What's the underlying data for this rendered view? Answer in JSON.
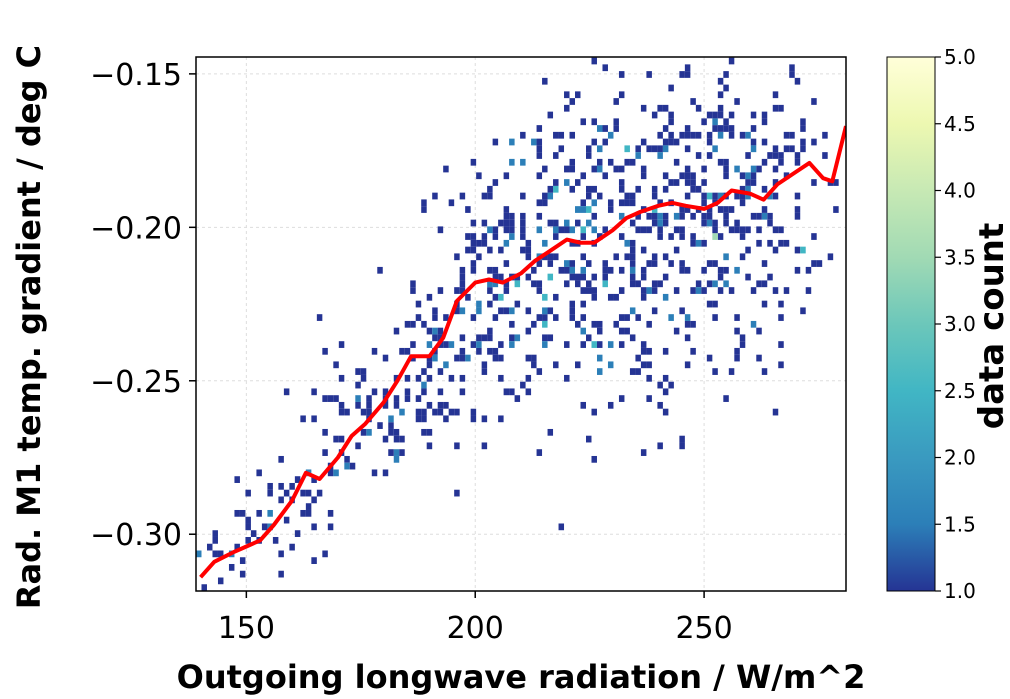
{
  "chart_data": {
    "type": "heatmap",
    "xlabel": "Outgoing longwave radiation / W/m^2",
    "ylabel": "Rad. M1 temp. gradient / deg C",
    "xlim": [
      139,
      281
    ],
    "ylim": [
      -0.3185,
      -0.1445
    ],
    "x_ticks": [
      150,
      200,
      250
    ],
    "x_tick_labels": [
      "150",
      "200",
      "250"
    ],
    "y_ticks": [
      -0.3,
      -0.25,
      -0.2,
      -0.15
    ],
    "y_tick_labels": [
      "−0.30",
      "−0.25",
      "−0.20",
      "−0.15"
    ],
    "grid": true,
    "colormap": "YlGnBu",
    "colorbar": {
      "label": "data count",
      "range": [
        1.0,
        5.0
      ],
      "ticks": [
        1.0,
        1.5,
        2.0,
        2.5,
        3.0,
        3.5,
        4.0,
        4.5,
        5.0
      ],
      "tick_labels": [
        "1.0",
        "1.5",
        "2.0",
        "2.5",
        "3.0",
        "3.5",
        "4.0",
        "4.5",
        "5.0"
      ]
    },
    "bin_size": {
      "x": 1.2,
      "y": 0.0022
    },
    "cell_colors": {
      "1": "#253494",
      "2": "#2c7fb8",
      "3": "#41b6c4",
      "4": "#a1dab4",
      "5": "#ffffcc"
    },
    "mean_line": {
      "color": "#ff0000",
      "x": [
        140,
        143,
        147,
        150,
        153,
        156,
        160,
        163,
        166,
        170,
        173,
        176,
        180,
        183,
        186,
        190,
        193,
        196,
        200,
        203,
        206,
        210,
        213,
        216,
        220,
        223,
        226,
        230,
        233,
        236,
        240,
        243,
        246,
        250,
        253,
        256,
        260,
        263,
        266,
        270,
        273,
        276,
        278,
        281
      ],
      "y": [
        -0.314,
        -0.309,
        -0.306,
        -0.304,
        -0.302,
        -0.297,
        -0.289,
        -0.28,
        -0.282,
        -0.275,
        -0.268,
        -0.264,
        -0.257,
        -0.25,
        -0.242,
        -0.242,
        -0.236,
        -0.224,
        -0.218,
        -0.217,
        -0.218,
        -0.215,
        -0.211,
        -0.208,
        -0.204,
        -0.205,
        -0.205,
        -0.201,
        -0.197,
        -0.195,
        -0.193,
        -0.192,
        -0.193,
        -0.194,
        -0.192,
        -0.188,
        -0.189,
        -0.191,
        -0.186,
        -0.182,
        -0.179,
        -0.184,
        -0.185,
        -0.167
      ]
    },
    "cloud_clusters": [
      {
        "cx": 145,
        "cy": -0.308,
        "sx": 5,
        "sy": 0.006,
        "n": 18
      },
      {
        "cx": 160,
        "cy": -0.292,
        "sx": 6,
        "sy": 0.008,
        "n": 45
      },
      {
        "cx": 175,
        "cy": -0.265,
        "sx": 7,
        "sy": 0.011,
        "n": 65
      },
      {
        "cx": 190,
        "cy": -0.245,
        "sx": 7,
        "sy": 0.013,
        "n": 65
      },
      {
        "cx": 205,
        "cy": -0.218,
        "sx": 9,
        "sy": 0.02,
        "n": 170
      },
      {
        "cx": 225,
        "cy": -0.205,
        "sx": 11,
        "sy": 0.023,
        "n": 230
      },
      {
        "cx": 248,
        "cy": -0.196,
        "sx": 13,
        "sy": 0.026,
        "n": 260
      },
      {
        "cx": 262,
        "cy": -0.185,
        "sx": 9,
        "sy": 0.02,
        "n": 90
      },
      {
        "cx": 235,
        "cy": -0.245,
        "sx": 14,
        "sy": 0.015,
        "n": 45
      }
    ]
  }
}
